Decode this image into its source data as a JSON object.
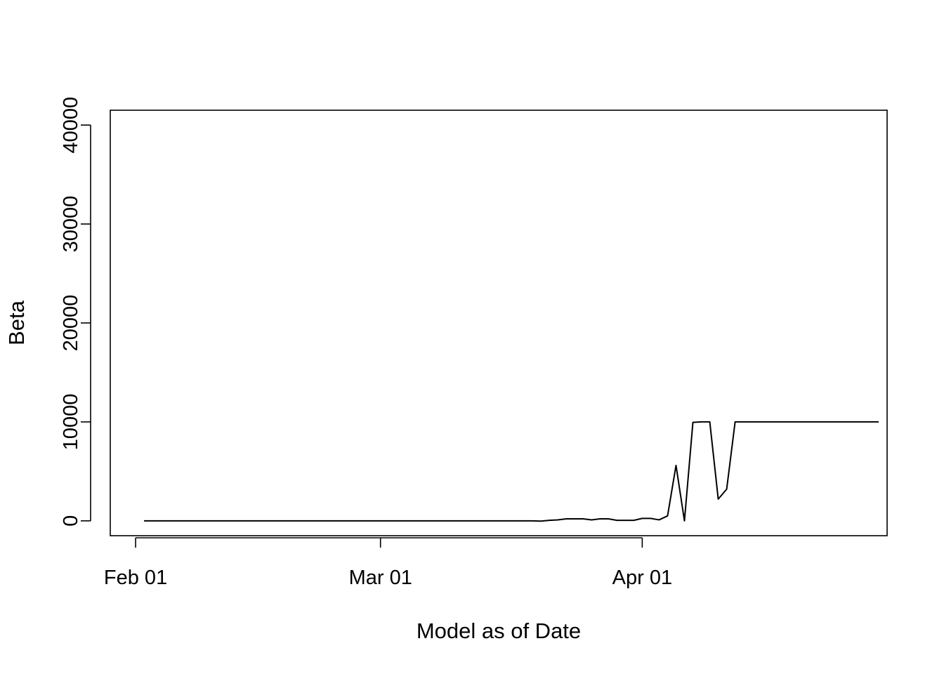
{
  "chart_data": {
    "type": "line",
    "title": "",
    "xlabel": "Model as of Date",
    "ylabel": "Beta",
    "x_tick_labels": [
      {
        "date": "2020-02-01",
        "label": "Feb 01"
      },
      {
        "date": "2020-03-01",
        "label": "Mar 01"
      },
      {
        "date": "2020-04-01",
        "label": "Apr 01"
      }
    ],
    "y_ticks": [
      0,
      10000,
      20000,
      30000,
      40000
    ],
    "y_tick_labels": [
      "0",
      "10000",
      "20000",
      "30000",
      "40000"
    ],
    "xlim": [
      "2020-01-29",
      "2020-04-30"
    ],
    "ylim": [
      -1500,
      41500
    ],
    "grid": false,
    "series": [
      {
        "x": [
          "2020-02-02",
          "2020-02-03",
          "2020-02-04",
          "2020-02-05",
          "2020-02-06",
          "2020-02-07",
          "2020-02-08",
          "2020-02-09",
          "2020-02-10",
          "2020-02-11",
          "2020-02-12",
          "2020-02-13",
          "2020-02-14",
          "2020-02-15",
          "2020-02-16",
          "2020-02-17",
          "2020-02-18",
          "2020-02-19",
          "2020-02-20",
          "2020-02-21",
          "2020-02-22",
          "2020-02-23",
          "2020-02-24",
          "2020-02-25",
          "2020-02-26",
          "2020-02-27",
          "2020-02-28",
          "2020-02-29",
          "2020-03-01",
          "2020-03-02",
          "2020-03-03",
          "2020-03-04",
          "2020-03-05",
          "2020-03-06",
          "2020-03-07",
          "2020-03-08",
          "2020-03-09",
          "2020-03-10",
          "2020-03-11",
          "2020-03-12",
          "2020-03-13",
          "2020-03-14",
          "2020-03-15",
          "2020-03-16",
          "2020-03-17",
          "2020-03-18",
          "2020-03-19",
          "2020-03-20",
          "2020-03-21",
          "2020-03-22",
          "2020-03-23",
          "2020-03-24",
          "2020-03-25",
          "2020-03-26",
          "2020-03-27",
          "2020-03-28",
          "2020-03-29",
          "2020-03-30",
          "2020-03-31",
          "2020-04-01",
          "2020-04-02",
          "2020-04-03",
          "2020-04-04",
          "2020-04-05",
          "2020-04-06",
          "2020-04-07",
          "2020-04-08",
          "2020-04-09",
          "2020-04-10",
          "2020-04-11",
          "2020-04-12",
          "2020-04-13",
          "2020-04-14",
          "2020-04-15",
          "2020-04-16",
          "2020-04-17",
          "2020-04-18",
          "2020-04-19",
          "2020-04-20",
          "2020-04-21",
          "2020-04-22",
          "2020-04-23",
          "2020-04-24",
          "2020-04-25",
          "2020-04-26",
          "2020-04-27",
          "2020-04-28",
          "2020-04-29"
        ],
        "y": [
          0,
          0,
          0,
          0,
          0,
          0,
          0,
          0,
          0,
          0,
          0,
          0,
          0,
          0,
          0,
          0,
          0,
          0,
          0,
          0,
          0,
          0,
          0,
          0,
          0,
          0,
          0,
          0,
          0,
          0,
          0,
          0,
          0,
          0,
          0,
          0,
          0,
          0,
          0,
          0,
          0,
          0,
          0,
          0,
          0,
          0,
          0,
          -30,
          50,
          100,
          200,
          200,
          200,
          100,
          200,
          200,
          50,
          50,
          50,
          250,
          250,
          100,
          500,
          5600,
          0,
          9950,
          10000,
          10000,
          2200,
          3200,
          10000,
          10000,
          10000,
          10000,
          10000,
          10000,
          10000,
          10000,
          10000,
          10000,
          10000,
          10000,
          10000,
          10000,
          10000,
          10000,
          10000,
          10000
        ]
      }
    ]
  }
}
